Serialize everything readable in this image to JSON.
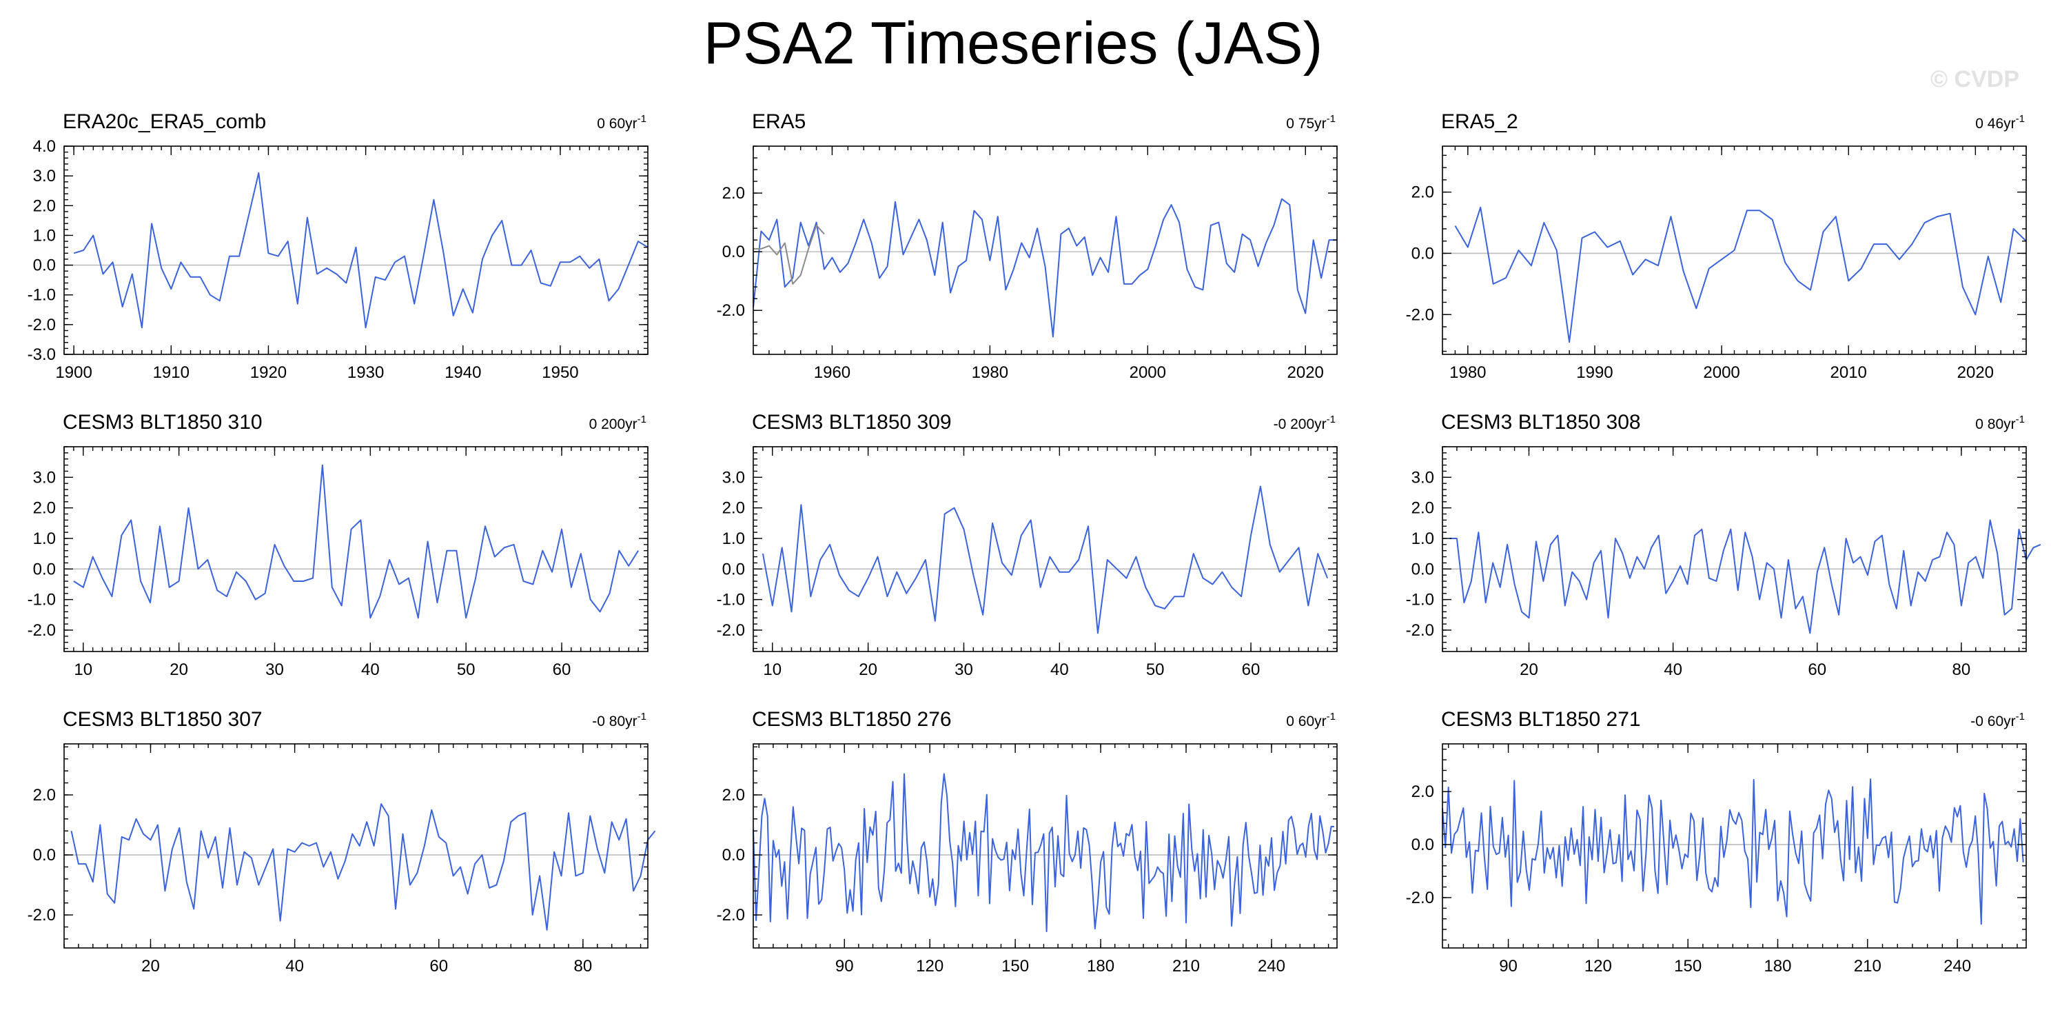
{
  "title": "PSA2 Timeseries (JAS)",
  "watermark": "© CVDP",
  "colors": {
    "series": "#3a63dc",
    "zero_line": "#bdbdbd",
    "secondary_series": "#8a8a8a"
  },
  "chart_data": [
    {
      "type": "line",
      "title": "ERA20c_ERA5_comb",
      "trend": "0.60yr",
      "trend_display": "0 60yr",
      "trend_exp": "-1",
      "xlim": [
        1899,
        1959
      ],
      "ylim": [
        -3,
        4
      ],
      "grid": false,
      "zero_line": true,
      "xticks": [
        {
          "v": 1900,
          "label": "1900"
        },
        {
          "v": 1910,
          "label": "1910"
        },
        {
          "v": 1920,
          "label": "1920"
        },
        {
          "v": 1930,
          "label": "1930"
        },
        {
          "v": 1940,
          "label": "1940"
        },
        {
          "v": 1950,
          "label": "1950"
        }
      ],
      "yticks": [
        {
          "v": -3,
          "label": "-3.0"
        },
        {
          "v": -2,
          "label": "-2.0"
        },
        {
          "v": -1,
          "label": "-1.0"
        },
        {
          "v": 0,
          "label": "0.0"
        },
        {
          "v": 1,
          "label": "1.0"
        },
        {
          "v": 2,
          "label": "2.0"
        },
        {
          "v": 3,
          "label": "3.0"
        },
        {
          "v": 4,
          "label": "4.0"
        }
      ],
      "series": [
        {
          "x_start": 1900,
          "values": [
            0.4,
            0.5,
            1.0,
            -0.3,
            0.1,
            -1.4,
            -0.3,
            -2.1,
            1.4,
            -0.1,
            -0.8,
            0.1,
            -0.4,
            -0.4,
            -1.0,
            -1.2,
            0.3,
            0.3,
            1.7,
            3.1,
            0.4,
            0.3,
            0.8,
            -1.3,
            1.6,
            -0.3,
            -0.1,
            -0.3,
            -0.6,
            0.6,
            -2.1,
            -0.4,
            -0.5,
            0.1,
            0.3,
            -1.3,
            0.4,
            2.2,
            0.4,
            -1.7,
            -0.8,
            -1.6,
            0.2,
            1.0,
            1.5,
            0.0,
            0.0,
            0.5,
            -0.6,
            -0.7,
            0.1,
            0.1,
            0.3,
            -0.1,
            0.2,
            -1.2,
            -0.8,
            0.0,
            0.8,
            0.6
          ]
        }
      ]
    },
    {
      "type": "line",
      "title": "ERA5",
      "trend": "0.75yr",
      "trend_display": "0 75yr",
      "trend_exp": "-1",
      "xlim": [
        1950,
        2024
      ],
      "ylim": [
        -3.5,
        3.6
      ],
      "grid": false,
      "zero_line": true,
      "xticks": [
        {
          "v": 1960,
          "label": "1960"
        },
        {
          "v": 1980,
          "label": "1980"
        },
        {
          "v": 2000,
          "label": "2000"
        },
        {
          "v": 2020,
          "label": "2020"
        }
      ],
      "yticks": [
        {
          "v": -2,
          "label": "-2.0"
        },
        {
          "v": 0,
          "label": "0.0"
        },
        {
          "v": 2,
          "label": "2.0"
        }
      ],
      "series": [
        {
          "x_start": 1950,
          "values": [
            -1.9,
            0.7,
            0.4,
            1.1,
            -1.2,
            -0.9,
            1.0,
            0.2,
            1.0,
            -0.6,
            -0.2,
            -0.7,
            -0.4,
            0.3,
            1.1,
            0.3,
            -0.9,
            -0.5,
            1.7,
            -0.1,
            0.5,
            1.1,
            0.4,
            -0.8,
            1.0,
            -1.4,
            -0.5,
            -0.3,
            1.4,
            1.1,
            -0.3,
            1.2,
            -1.3,
            -0.6,
            0.3,
            -0.2,
            0.8,
            -0.5,
            -2.9,
            0.6,
            0.8,
            0.2,
            0.5,
            -0.8,
            -0.2,
            -0.7,
            1.2,
            -1.1,
            -1.1,
            -0.8,
            -0.6,
            0.2,
            1.1,
            1.6,
            1.0,
            -0.6,
            -1.2,
            -1.3,
            0.9,
            1.0,
            -0.4,
            -0.7,
            0.6,
            0.4,
            -0.5,
            0.3,
            0.9,
            1.8,
            1.6,
            -1.3,
            -2.1,
            0.4,
            -0.9,
            0.4,
            0.4
          ]
        },
        {
          "x_start": 1950,
          "values": [
            0.1,
            0.1,
            0.2,
            -0.1,
            0.3,
            -1.1,
            -0.8,
            0.1,
            0.9,
            0.6
          ]
        }
      ]
    },
    {
      "type": "line",
      "title": "ERA5_2",
      "trend": "0.46yr",
      "trend_display": "0 46yr",
      "trend_exp": "-1",
      "xlim": [
        1978,
        2024
      ],
      "ylim": [
        -3.3,
        3.5
      ],
      "grid": false,
      "zero_line": true,
      "xticks": [
        {
          "v": 1980,
          "label": "1980"
        },
        {
          "v": 1990,
          "label": "1990"
        },
        {
          "v": 2000,
          "label": "2000"
        },
        {
          "v": 2010,
          "label": "2010"
        },
        {
          "v": 2020,
          "label": "2020"
        }
      ],
      "yticks": [
        {
          "v": -2,
          "label": "-2.0"
        },
        {
          "v": 0,
          "label": "0.0"
        },
        {
          "v": 2,
          "label": "2.0"
        }
      ],
      "series": [
        {
          "x_start": 1979,
          "values": [
            0.9,
            0.2,
            1.5,
            -1.0,
            -0.8,
            0.1,
            -0.4,
            1.0,
            0.1,
            -2.9,
            0.5,
            0.7,
            0.2,
            0.4,
            -0.7,
            -0.2,
            -0.4,
            1.2,
            -0.6,
            -1.8,
            -0.5,
            -0.2,
            0.1,
            1.4,
            1.4,
            1.1,
            -0.3,
            -0.9,
            -1.2,
            0.7,
            1.2,
            -0.9,
            -0.5,
            0.3,
            0.3,
            -0.2,
            0.3,
            1.0,
            1.2,
            1.3,
            -1.1,
            -2.0,
            -0.1,
            -1.6,
            0.8,
            0.4
          ]
        }
      ]
    },
    {
      "type": "line",
      "title": "CESM3 BLT1850 310",
      "trend": "0.200yr",
      "trend_display": "0 200yr",
      "trend_exp": "-1",
      "xlim": [
        8,
        69
      ],
      "ylim": [
        -2.7,
        4
      ],
      "grid": false,
      "zero_line": true,
      "xticks": [
        {
          "v": 10,
          "label": "10"
        },
        {
          "v": 20,
          "label": "20"
        },
        {
          "v": 30,
          "label": "30"
        },
        {
          "v": 40,
          "label": "40"
        },
        {
          "v": 50,
          "label": "50"
        },
        {
          "v": 60,
          "label": "60"
        }
      ],
      "yticks": [
        {
          "v": -2,
          "label": "-2.0"
        },
        {
          "v": -1,
          "label": "-1.0"
        },
        {
          "v": 0,
          "label": "0.0"
        },
        {
          "v": 1,
          "label": "1.0"
        },
        {
          "v": 2,
          "label": "2.0"
        },
        {
          "v": 3,
          "label": "3.0"
        }
      ],
      "series": [
        {
          "x_start": 9,
          "values": [
            -0.4,
            -0.6,
            0.4,
            -0.3,
            -0.9,
            1.1,
            1.6,
            -0.4,
            -1.1,
            1.4,
            -0.6,
            -0.4,
            2.0,
            0.0,
            0.3,
            -0.7,
            -0.9,
            -0.1,
            -0.4,
            -1.0,
            -0.8,
            0.8,
            0.1,
            -0.4,
            -0.4,
            -0.3,
            3.4,
            -0.6,
            -1.2,
            1.3,
            1.6,
            -1.6,
            -0.9,
            0.3,
            -0.5,
            -0.3,
            -1.6,
            0.9,
            -1.1,
            0.6,
            0.6,
            -1.6,
            -0.3,
            1.4,
            0.4,
            0.7,
            0.8,
            -0.4,
            -0.5,
            0.6,
            -0.1,
            1.3,
            -0.6,
            0.5,
            -1.0,
            -1.4,
            -0.8,
            0.6,
            0.1,
            0.6
          ]
        }
      ]
    },
    {
      "type": "line",
      "title": "CESM3 BLT1850 309",
      "trend": "-0.200yr",
      "trend_display": "-0 200yr",
      "trend_exp": "-1",
      "xlim": [
        8,
        69
      ],
      "ylim": [
        -2.7,
        4
      ],
      "grid": false,
      "zero_line": true,
      "xticks": [
        {
          "v": 10,
          "label": "10"
        },
        {
          "v": 20,
          "label": "20"
        },
        {
          "v": 30,
          "label": "30"
        },
        {
          "v": 40,
          "label": "40"
        },
        {
          "v": 50,
          "label": "50"
        },
        {
          "v": 60,
          "label": "60"
        }
      ],
      "yticks": [
        {
          "v": -2,
          "label": "-2.0"
        },
        {
          "v": -1,
          "label": "-1.0"
        },
        {
          "v": 0,
          "label": "0.0"
        },
        {
          "v": 1,
          "label": "1.0"
        },
        {
          "v": 2,
          "label": "2.0"
        },
        {
          "v": 3,
          "label": "3.0"
        }
      ],
      "series": [
        {
          "x_start": 9,
          "values": [
            0.5,
            -1.2,
            0.7,
            -1.4,
            2.1,
            -0.9,
            0.3,
            0.8,
            -0.2,
            -0.7,
            -0.9,
            -0.3,
            0.4,
            -0.9,
            -0.1,
            -0.8,
            -0.3,
            0.3,
            -1.7,
            1.8,
            2.0,
            1.3,
            -0.2,
            -1.5,
            1.5,
            0.2,
            -0.2,
            1.1,
            1.6,
            -0.6,
            0.4,
            -0.1,
            -0.1,
            0.3,
            1.4,
            -2.1,
            0.3,
            0.0,
            -0.3,
            0.4,
            -0.6,
            -1.2,
            -1.3,
            -0.9,
            -0.9,
            0.5,
            -0.3,
            -0.5,
            -0.1,
            -0.6,
            -0.9,
            1.1,
            2.7,
            0.8,
            -0.1,
            0.3,
            0.7,
            -1.2,
            0.5,
            -0.3
          ]
        }
      ]
    },
    {
      "type": "line",
      "title": "CESM3 BLT1850 308",
      "trend": "0.80yr",
      "trend_display": "0 80yr",
      "trend_exp": "-1",
      "xlim": [
        8,
        89
      ],
      "ylim": [
        -2.7,
        4
      ],
      "grid": false,
      "zero_line": true,
      "xticks": [
        {
          "v": 20,
          "label": "20"
        },
        {
          "v": 40,
          "label": "40"
        },
        {
          "v": 60,
          "label": "60"
        },
        {
          "v": 80,
          "label": "80"
        }
      ],
      "yticks": [
        {
          "v": -2,
          "label": "-2.0"
        },
        {
          "v": -1,
          "label": "-1.0"
        },
        {
          "v": 0,
          "label": "0.0"
        },
        {
          "v": 1,
          "label": "1.0"
        },
        {
          "v": 2,
          "label": "2.0"
        },
        {
          "v": 3,
          "label": "3.0"
        }
      ],
      "series": [
        {
          "x_start": 9,
          "values": [
            1.0,
            1.0,
            -1.1,
            -0.4,
            1.2,
            -1.1,
            0.2,
            -0.6,
            0.8,
            -0.5,
            -1.4,
            -1.6,
            0.9,
            -0.4,
            0.8,
            1.1,
            -1.2,
            -0.1,
            -0.4,
            -1.0,
            0.2,
            0.6,
            -1.6,
            1.0,
            0.5,
            -0.3,
            0.4,
            0.0,
            0.7,
            1.1,
            -0.8,
            -0.4,
            0.1,
            -0.5,
            1.1,
            1.3,
            -0.3,
            -0.4,
            0.6,
            1.3,
            -0.7,
            1.2,
            0.4,
            -1.0,
            0.2,
            0.0,
            -1.6,
            0.3,
            -1.3,
            -0.9,
            -2.1,
            -0.1,
            0.7,
            -0.5,
            -1.5,
            1.0,
            0.2,
            0.4,
            -0.2,
            0.9,
            1.1,
            -0.5,
            -1.3,
            0.6,
            -1.2,
            -0.1,
            -0.4,
            0.3,
            0.4,
            1.2,
            0.8,
            -1.2,
            0.2,
            0.4,
            -0.3,
            1.6,
            0.5,
            -1.5,
            -1.3,
            1.3,
            0.3,
            0.7,
            0.8
          ]
        }
      ]
    },
    {
      "type": "line",
      "title": "CESM3 BLT1850 307",
      "trend": "-0.80yr",
      "trend_display": "-0 80yr",
      "trend_exp": "-1",
      "xlim": [
        8,
        89
      ],
      "ylim": [
        -3.1,
        3.7
      ],
      "grid": false,
      "zero_line": true,
      "xticks": [
        {
          "v": 20,
          "label": "20"
        },
        {
          "v": 40,
          "label": "40"
        },
        {
          "v": 60,
          "label": "60"
        },
        {
          "v": 80,
          "label": "80"
        }
      ],
      "yticks": [
        {
          "v": -2,
          "label": "-2.0"
        },
        {
          "v": 0,
          "label": "0.0"
        },
        {
          "v": 2,
          "label": "2.0"
        }
      ],
      "series": [
        {
          "x_start": 9,
          "values": [
            0.8,
            -0.3,
            -0.3,
            -0.9,
            1.0,
            -1.3,
            -1.6,
            0.6,
            0.5,
            1.2,
            0.7,
            0.5,
            1.0,
            -1.2,
            0.2,
            0.9,
            -0.9,
            -1.8,
            0.8,
            -0.1,
            0.6,
            -1.1,
            0.9,
            -1.0,
            0.1,
            -0.1,
            -1.0,
            -0.4,
            0.2,
            -2.2,
            0.2,
            0.1,
            0.4,
            0.3,
            0.4,
            -0.4,
            0.1,
            -0.8,
            -0.2,
            0.7,
            0.3,
            1.1,
            0.3,
            1.7,
            1.3,
            -1.8,
            0.7,
            -1.0,
            -0.6,
            0.3,
            1.5,
            0.6,
            0.4,
            -0.7,
            -0.4,
            -1.3,
            -0.3,
            0.0,
            -1.1,
            -1.0,
            -0.2,
            1.1,
            1.3,
            1.4,
            -2.0,
            -0.7,
            -2.5,
            0.1,
            -0.7,
            1.4,
            -0.7,
            -0.6,
            1.3,
            0.2,
            -0.6,
            1.1,
            0.5,
            1.2,
            -1.2,
            -0.7,
            0.5,
            0.8
          ]
        }
      ]
    },
    {
      "type": "line",
      "title": "CESM3 BLT1850 276",
      "trend": "0.60yr",
      "trend_display": "0 60yr",
      "trend_exp": "-1",
      "xlim": [
        58,
        263
      ],
      "ylim": [
        -3.1,
        3.7
      ],
      "grid": false,
      "zero_line": true,
      "xticks": [
        {
          "v": 90,
          "label": "90"
        },
        {
          "v": 120,
          "label": "120"
        },
        {
          "v": 150,
          "label": "150"
        },
        {
          "v": 180,
          "label": "180"
        },
        {
          "v": 210,
          "label": "210"
        },
        {
          "v": 240,
          "label": "240"
        }
      ],
      "yticks": [
        {
          "v": -2,
          "label": "-2.0"
        },
        {
          "v": 0,
          "label": "0.0"
        },
        {
          "v": 2,
          "label": "2.0"
        }
      ],
      "series": [
        {
          "x_start": 58,
          "values": []
        }
      ]
    },
    {
      "type": "line",
      "title": "CESM3 BLT1850 271",
      "trend": "-0.60yr",
      "trend_display": "-0 60yr",
      "trend_exp": "-1",
      "xlim": [
        68,
        263
      ],
      "ylim": [
        -3.9,
        3.8
      ],
      "grid": false,
      "zero_line": true,
      "xticks": [
        {
          "v": 90,
          "label": "90"
        },
        {
          "v": 120,
          "label": "120"
        },
        {
          "v": 150,
          "label": "150"
        },
        {
          "v": 180,
          "label": "180"
        },
        {
          "v": 210,
          "label": "210"
        },
        {
          "v": 240,
          "label": "240"
        }
      ],
      "yticks": [
        {
          "v": -2,
          "label": "-2.0"
        },
        {
          "v": 0,
          "label": "0.0"
        },
        {
          "v": 2,
          "label": "2.0"
        }
      ],
      "series": [
        {
          "x_start": 68,
          "values": []
        }
      ]
    }
  ]
}
